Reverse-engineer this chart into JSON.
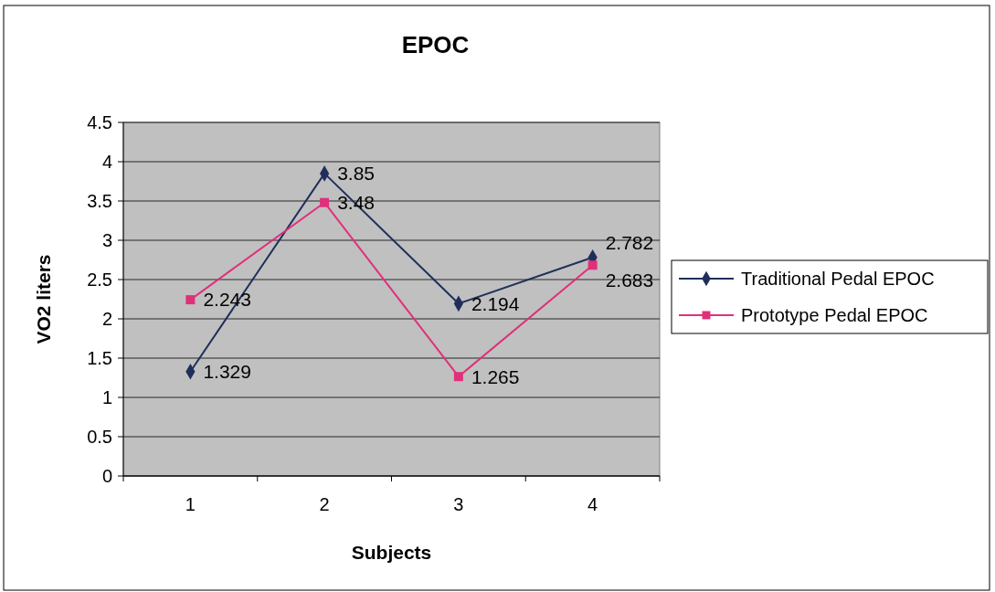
{
  "chart_data": {
    "type": "line",
    "title": "EPOC",
    "xlabel": "Subjects",
    "ylabel": "VO2 liters",
    "categories": [
      "1",
      "2",
      "3",
      "4"
    ],
    "series": [
      {
        "name": "Traditional Pedal EPOC",
        "color": "#1f2f5a",
        "marker": "diamond",
        "values": [
          1.329,
          3.85,
          2.194,
          2.782
        ]
      },
      {
        "name": "Prototype Pedal EPOC",
        "color": "#e0307a",
        "marker": "square",
        "values": [
          2.243,
          3.48,
          1.265,
          2.683
        ]
      }
    ],
    "ylim": [
      0,
      4.5
    ],
    "yticks": [
      0,
      0.5,
      1,
      1.5,
      2,
      2.5,
      3,
      3.5,
      4,
      4.5
    ],
    "grid": "y",
    "legend": "right",
    "data_labels": true,
    "line_style": "solid"
  }
}
